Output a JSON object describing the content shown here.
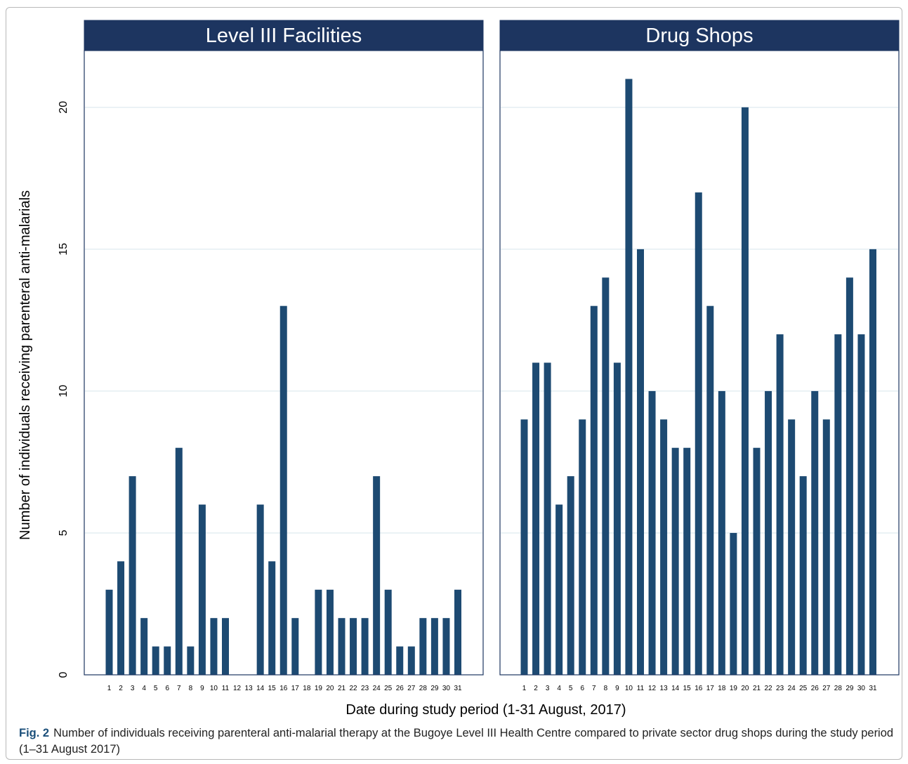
{
  "chart_data": {
    "type": "bar",
    "ylabel": "Number of individuals receiving parenteral anti-malarials",
    "xlabel": "Date during study period (1-31 August, 2017)",
    "ylim": [
      0,
      22
    ],
    "yticks": [
      0,
      5,
      10,
      15,
      20
    ],
    "grid": true,
    "bar_color": "#1d4a72",
    "title_bg_color": "#1d3560",
    "categories": [
      "1",
      "2",
      "3",
      "4",
      "5",
      "6",
      "7",
      "8",
      "9",
      "10",
      "11",
      "12",
      "13",
      "14",
      "15",
      "16",
      "17",
      "18",
      "19",
      "20",
      "21",
      "22",
      "23",
      "24",
      "25",
      "26",
      "27",
      "28",
      "29",
      "30",
      "31"
    ],
    "panels": [
      {
        "title": "Level III Facilities",
        "values": [
          3,
          4,
          7,
          2,
          1,
          1,
          8,
          1,
          6,
          2,
          2,
          0,
          0,
          6,
          4,
          13,
          2,
          0,
          3,
          3,
          2,
          2,
          2,
          7,
          3,
          1,
          1,
          2,
          2,
          2,
          3
        ]
      },
      {
        "title": "Drug Shops",
        "values": [
          9,
          11,
          11,
          6,
          7,
          9,
          13,
          14,
          11,
          21,
          15,
          10,
          9,
          8,
          8,
          17,
          13,
          10,
          5,
          20,
          8,
          10,
          12,
          9,
          7,
          10,
          9,
          12,
          14,
          12,
          15
        ]
      }
    ]
  },
  "caption": {
    "label": "Fig. 2",
    "text": "Number of individuals receiving parenteral anti-malarial therapy at the Bugoye Level III Health Centre compared to private sector drug shops during the study period (1–31 August 2017)"
  }
}
